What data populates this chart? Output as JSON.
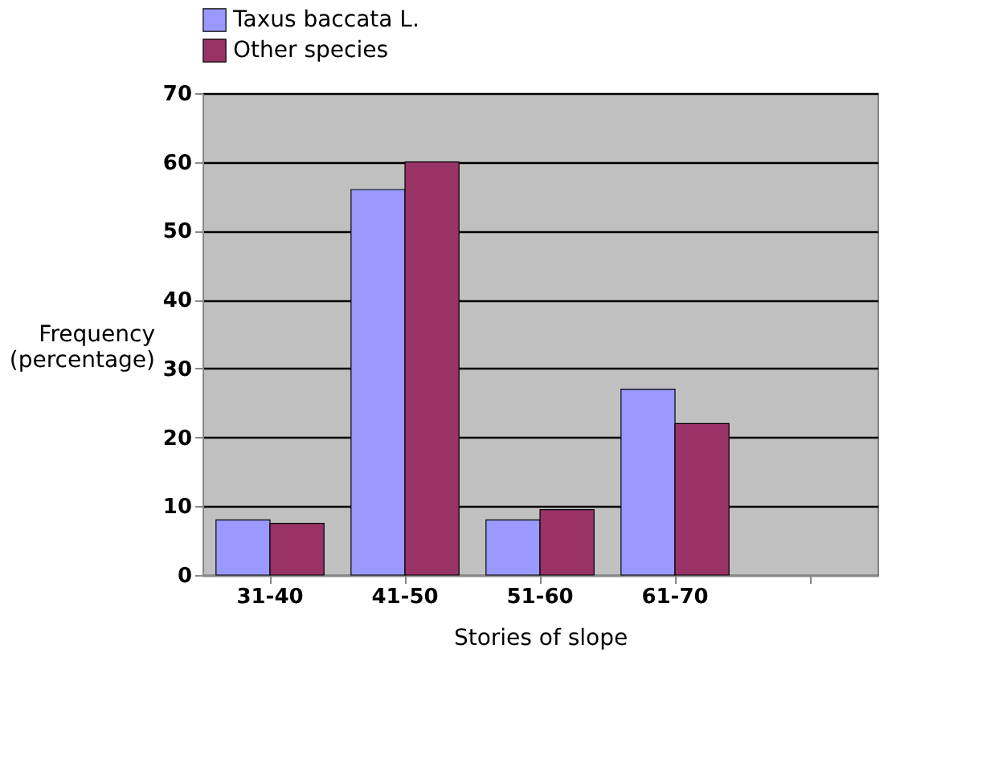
{
  "chart_data": {
    "type": "bar",
    "xlabel": "Stories of slope",
    "ylabel": "Frequency\n(percentage)",
    "categories": [
      "31-40",
      "41-50",
      "51-60",
      "61-70",
      null
    ],
    "series": [
      {
        "name": "Taxus baccata L.",
        "color": "#9999ff",
        "values": [
          8,
          56,
          8,
          27,
          null
        ]
      },
      {
        "name": "Other species",
        "color": "#993366",
        "values": [
          7.5,
          60,
          9.5,
          22,
          null
        ]
      }
    ],
    "ylim": [
      0,
      70
    ],
    "yticks": [
      0,
      10,
      20,
      30,
      40,
      50,
      60,
      70
    ],
    "grid": "y",
    "legend": "top"
  }
}
